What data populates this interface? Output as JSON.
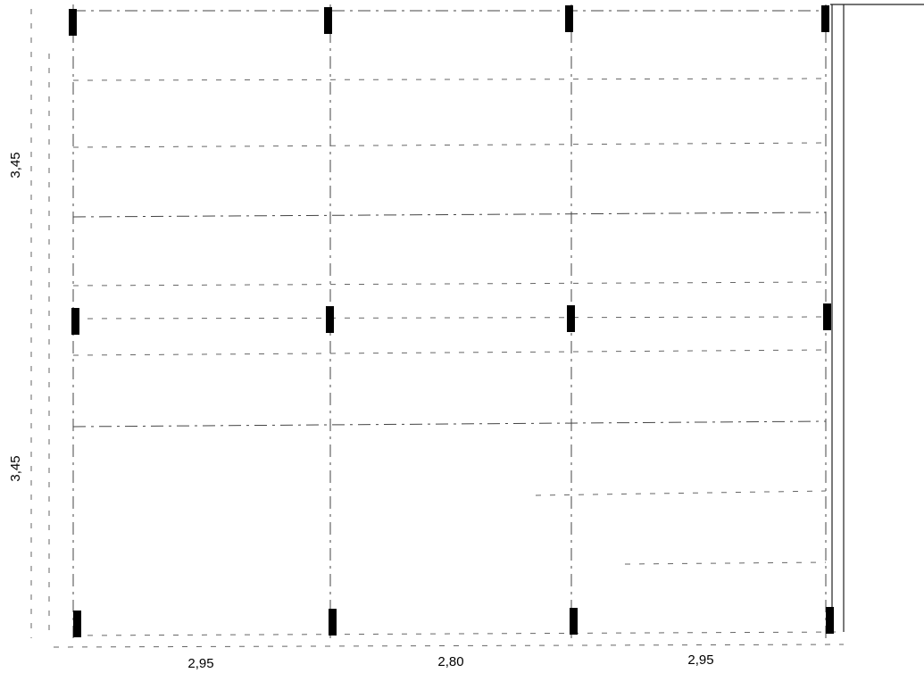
{
  "dimensions": {
    "vertical": [
      "3,45",
      "3,45"
    ],
    "horizontal": [
      "2,95",
      "2,80",
      "2,95"
    ]
  }
}
